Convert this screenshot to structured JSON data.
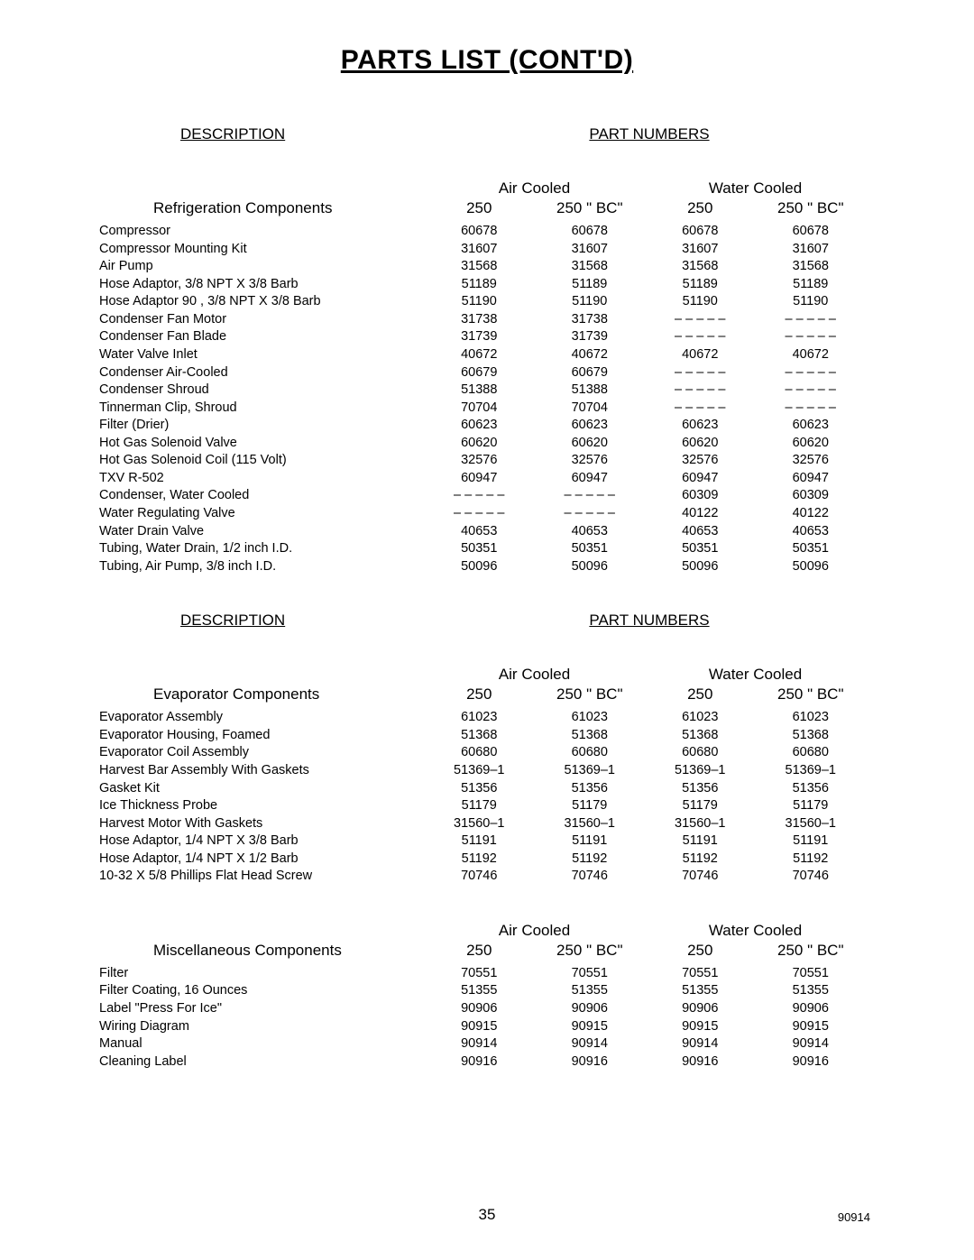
{
  "title": "PARTS LIST (CONT'D)",
  "desc_header": "DESCRIPTION",
  "pn_header": "PART NUMBERS",
  "cooling_groups": [
    "Air Cooled",
    "Water Cooled"
  ],
  "col_labels": [
    "250",
    "250 \" BC\"",
    "250",
    "250 \" BC\""
  ],
  "dash": "– – – – –",
  "sections": [
    {
      "name": "Refrigeration Components",
      "show_headers": true,
      "rows": [
        {
          "desc": "Compressor",
          "v": [
            "60678",
            "60678",
            "60678",
            "60678"
          ]
        },
        {
          "desc": "Compressor Mounting Kit",
          "v": [
            "31607",
            "31607",
            "31607",
            "31607"
          ]
        },
        {
          "desc": "Air Pump",
          "v": [
            "31568",
            "31568",
            "31568",
            "31568"
          ]
        },
        {
          "desc": "Hose Adaptor, 3/8 NPT X 3/8 Barb",
          "v": [
            "51189",
            "51189",
            "51189",
            "51189"
          ]
        },
        {
          "desc": "Hose Adaptor 90 , 3/8 NPT X 3/8 Barb",
          "v": [
            "51190",
            "51190",
            "51190",
            "51190"
          ]
        },
        {
          "desc": "Condenser Fan Motor",
          "v": [
            "31738",
            "31738",
            "DASH",
            "DASH"
          ]
        },
        {
          "desc": "Condenser Fan Blade",
          "v": [
            "31739",
            "31739",
            "DASH",
            "DASH"
          ]
        },
        {
          "desc": "Water Valve Inlet",
          "v": [
            "40672",
            "40672",
            "40672",
            "40672"
          ]
        },
        {
          "desc": "Condenser Air-Cooled",
          "v": [
            "60679",
            "60679",
            "DASH",
            "DASH"
          ]
        },
        {
          "desc": "Condenser Shroud",
          "v": [
            "51388",
            "51388",
            "DASH",
            "DASH"
          ]
        },
        {
          "desc": "Tinnerman Clip, Shroud",
          "v": [
            "70704",
            "70704",
            "DASH",
            "DASH"
          ]
        },
        {
          "desc": "Filter (Drier)",
          "v": [
            "60623",
            "60623",
            "60623",
            "60623"
          ]
        },
        {
          "desc": "Hot Gas Solenoid Valve",
          "v": [
            "60620",
            "60620",
            "60620",
            "60620"
          ]
        },
        {
          "desc": "Hot Gas Solenoid Coil (115 Volt)",
          "v": [
            "32576",
            "32576",
            "32576",
            "32576"
          ]
        },
        {
          "desc": "TXV R-502",
          "v": [
            "60947",
            "60947",
            "60947",
            "60947"
          ]
        },
        {
          "desc": "Condenser, Water Cooled",
          "v": [
            "DASH",
            "DASH",
            "60309",
            "60309"
          ]
        },
        {
          "desc": "Water Regulating Valve",
          "v": [
            "DASH",
            "DASH",
            "40122",
            "40122"
          ]
        },
        {
          "desc": "Water Drain Valve",
          "v": [
            "40653",
            "40653",
            "40653",
            "40653"
          ]
        },
        {
          "desc": "Tubing, Water Drain, 1/2 inch I.D.",
          "v": [
            "50351",
            "50351",
            "50351",
            "50351"
          ]
        },
        {
          "desc": "Tubing, Air Pump, 3/8 inch I.D.",
          "v": [
            "50096",
            "50096",
            "50096",
            "50096"
          ]
        }
      ]
    },
    {
      "name": "Evaporator Components",
      "show_headers": true,
      "rows": [
        {
          "desc": "Evaporator Assembly",
          "v": [
            "61023",
            "61023",
            "61023",
            "61023"
          ]
        },
        {
          "desc": "Evaporator Housing, Foamed",
          "v": [
            "51368",
            "51368",
            "51368",
            "51368"
          ]
        },
        {
          "desc": "Evaporator Coil Assembly",
          "v": [
            "60680",
            "60680",
            "60680",
            "60680"
          ]
        },
        {
          "desc": "Harvest Bar Assembly With Gaskets",
          "v": [
            "51369–1",
            "51369–1",
            "51369–1",
            "51369–1"
          ]
        },
        {
          "desc": "Gasket Kit",
          "v": [
            "51356",
            "51356",
            "51356",
            "51356"
          ]
        },
        {
          "desc": "Ice Thickness Probe",
          "v": [
            "51179",
            "51179",
            "51179",
            "51179"
          ]
        },
        {
          "desc": "Harvest Motor With Gaskets",
          "v": [
            "31560–1",
            "31560–1",
            "31560–1",
            "31560–1"
          ]
        },
        {
          "desc": "Hose Adaptor, 1/4 NPT X 3/8 Barb",
          "v": [
            "51191",
            "51191",
            "51191",
            "51191"
          ]
        },
        {
          "desc": "Hose Adaptor, 1/4 NPT X 1/2 Barb",
          "v": [
            "51192",
            "51192",
            "51192",
            "51192"
          ]
        },
        {
          "desc": "10-32 X 5/8 Phillips Flat Head Screw",
          "v": [
            "70746",
            "70746",
            "70746",
            "70746"
          ]
        }
      ]
    },
    {
      "name": "Miscellaneous Components",
      "show_headers": false,
      "rows": [
        {
          "desc": "Filter",
          "v": [
            "70551",
            "70551",
            "70551",
            "70551"
          ]
        },
        {
          "desc": "Filter Coating, 16 Ounces",
          "v": [
            "51355",
            "51355",
            "51355",
            "51355"
          ]
        },
        {
          "desc": "Label \"Press For Ice\"",
          "v": [
            "90906",
            "90906",
            "90906",
            "90906"
          ]
        },
        {
          "desc": "Wiring Diagram",
          "v": [
            "90915",
            "90915",
            "90915",
            "90915"
          ]
        },
        {
          "desc": "Manual",
          "v": [
            "90914",
            "90914",
            "90914",
            "90914"
          ]
        },
        {
          "desc": "Cleaning Label",
          "v": [
            "90916",
            "90916",
            "90916",
            "90916"
          ]
        }
      ]
    }
  ],
  "page_number": "35",
  "doc_number": "90914",
  "style": {
    "background": "#ffffff",
    "text_color": "#000000",
    "font_family": "Arial, Helvetica, sans-serif",
    "title_fontsize": 30,
    "header_fontsize": 17,
    "body_fontsize": 14.5
  }
}
